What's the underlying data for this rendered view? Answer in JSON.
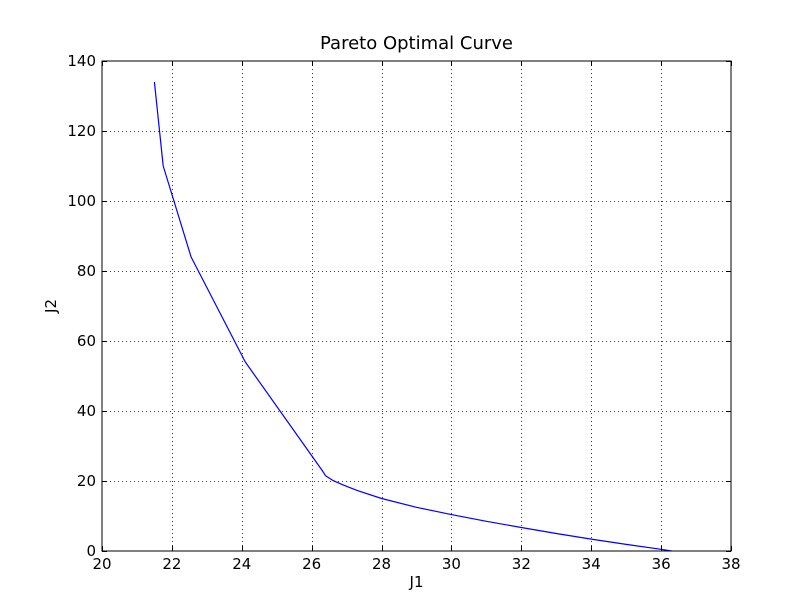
{
  "chart_data": {
    "type": "line",
    "title": "Pareto Optimal Curve",
    "xlabel": "J1",
    "ylabel": "J2",
    "xlim": [
      20,
      38
    ],
    "ylim": [
      0,
      140
    ],
    "xticks": [
      20,
      22,
      24,
      26,
      28,
      30,
      32,
      34,
      36,
      38
    ],
    "yticks": [
      0,
      20,
      40,
      60,
      80,
      100,
      120,
      140
    ],
    "xtick_labels": [
      "20",
      "22",
      "24",
      "26",
      "28",
      "30",
      "32",
      "34",
      "36",
      "38"
    ],
    "ytick_labels": [
      "0",
      "20",
      "40",
      "60",
      "80",
      "100",
      "120",
      "140"
    ],
    "grid": true,
    "series": [
      {
        "color": "#0000ff",
        "x": [
          21.5,
          21.75,
          22.55,
          24.1,
          26.3,
          26.4,
          26.6,
          26.9,
          27.3,
          28.0,
          29.0,
          30.0,
          31.0,
          32.0,
          33.0,
          34.0,
          35.0,
          36.0,
          36.3
        ],
        "y": [
          134,
          110,
          84,
          54,
          23,
          21.5,
          20.2,
          18.9,
          17.3,
          15.0,
          12.5,
          10.4,
          8.5,
          6.7,
          5.0,
          3.4,
          1.9,
          0.5,
          0
        ]
      }
    ]
  }
}
